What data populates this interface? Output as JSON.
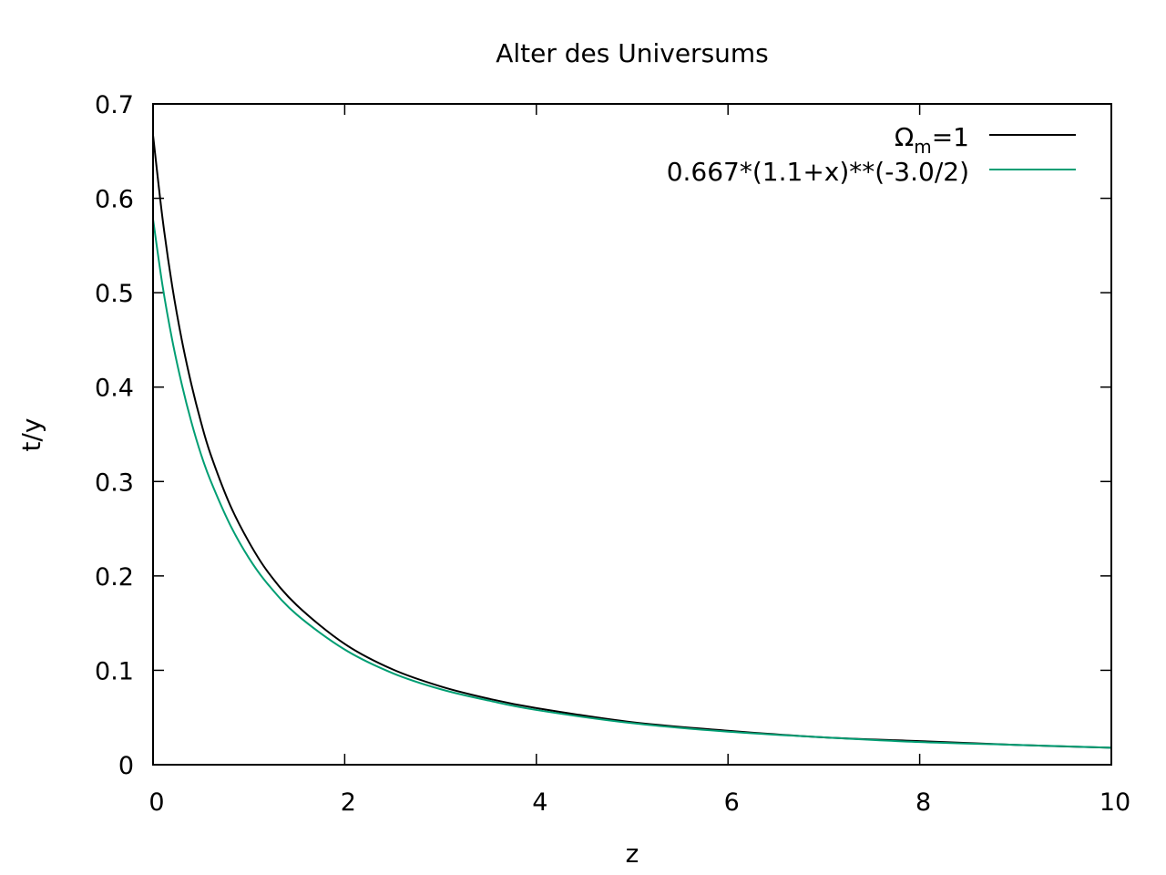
{
  "chart_data": {
    "type": "line",
    "title": "Alter des Universums",
    "xlabel": "z",
    "ylabel": "t/y",
    "xlim": [
      0,
      10
    ],
    "ylim": [
      0,
      0.7
    ],
    "xticks": [
      0,
      2,
      4,
      6,
      8,
      10
    ],
    "yticks": [
      0,
      0.1,
      0.2,
      0.3,
      0.4,
      0.5,
      0.6,
      0.7
    ],
    "xtick_labels": [
      "0",
      "2",
      "4",
      "6",
      "8",
      "10"
    ],
    "ytick_labels": [
      "0",
      "0.1",
      "0.2",
      "0.3",
      "0.4",
      "0.5",
      "0.6",
      "0.7"
    ],
    "grid": false,
    "legend_position": "top-right",
    "series": [
      {
        "name": "Ωm=1",
        "name_main": "Ω",
        "name_sub": "m",
        "name_tail": "=1",
        "color": "#000000",
        "x": [
          0,
          0.1,
          0.2,
          0.3,
          0.4,
          0.5,
          0.6,
          0.8,
          1.0,
          1.2,
          1.5,
          2.0,
          2.5,
          3.0,
          3.5,
          4.0,
          5.0,
          6.0,
          7.0,
          8.0,
          9.0,
          10.0
        ],
        "y": [
          0.667,
          0.578,
          0.507,
          0.45,
          0.403,
          0.363,
          0.329,
          0.276,
          0.236,
          0.204,
          0.169,
          0.128,
          0.101,
          0.083,
          0.07,
          0.06,
          0.045,
          0.036,
          0.029,
          0.025,
          0.021,
          0.018
        ]
      },
      {
        "name": "0.667*(1.1+x)**(-3.0/2)",
        "color": "#009e73",
        "x": [
          0,
          0.1,
          0.2,
          0.3,
          0.4,
          0.5,
          0.6,
          0.8,
          1.0,
          1.2,
          1.5,
          2.0,
          2.5,
          3.0,
          3.5,
          4.0,
          5.0,
          6.0,
          7.0,
          8.0,
          9.0,
          10.0
        ],
        "y": [
          0.578,
          0.507,
          0.45,
          0.403,
          0.363,
          0.329,
          0.301,
          0.255,
          0.219,
          0.191,
          0.159,
          0.122,
          0.097,
          0.08,
          0.068,
          0.058,
          0.044,
          0.035,
          0.029,
          0.024,
          0.021,
          0.018
        ]
      }
    ]
  }
}
